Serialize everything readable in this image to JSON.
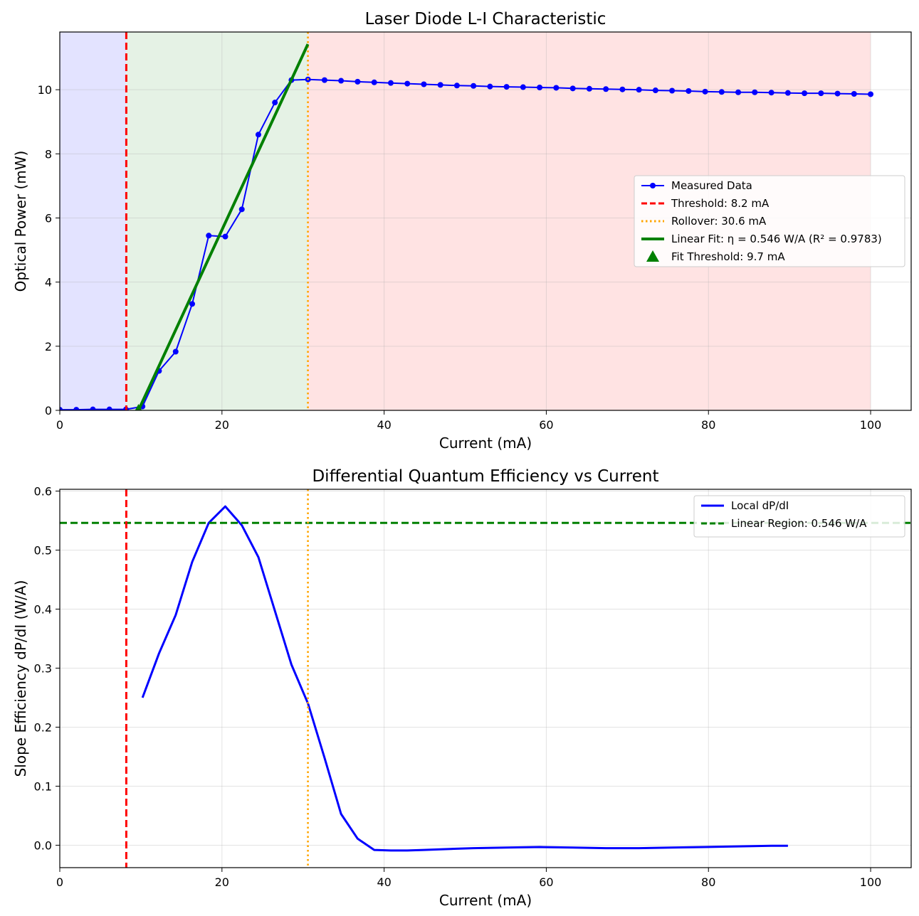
{
  "chart_data": [
    {
      "type": "line",
      "title": "Laser Diode L-I Characteristic",
      "xlabel": "Current (mA)",
      "ylabel": "Optical Power (mW)",
      "xlim": [
        0,
        105
      ],
      "ylim": [
        0,
        11.8
      ],
      "xticks": [
        "0",
        "20",
        "40",
        "60",
        "80",
        "100"
      ],
      "yticks": [
        "0",
        "2",
        "4",
        "6",
        "8",
        "10"
      ],
      "grid": true,
      "legend_position": "center-right",
      "regions": [
        {
          "x0": 0,
          "x1": 8.2,
          "color": "#e3e3ff"
        },
        {
          "x0": 8.2,
          "x1": 30.6,
          "color": "#e5f2e5"
        },
        {
          "x0": 30.6,
          "x1": 100,
          "color": "#ffe3e3"
        }
      ],
      "series": [
        {
          "name": "Measured Data",
          "color": "#0000ff",
          "marker": "circle",
          "x": [
            0,
            2.04,
            4.08,
            6.12,
            8.16,
            10.2,
            12.24,
            14.29,
            16.33,
            18.37,
            20.41,
            22.45,
            24.49,
            26.53,
            28.57,
            30.61,
            32.65,
            34.69,
            36.73,
            38.78,
            40.82,
            42.86,
            44.9,
            46.94,
            48.98,
            51.02,
            53.06,
            55.1,
            57.14,
            59.18,
            61.22,
            63.27,
            65.31,
            67.35,
            69.39,
            71.43,
            73.47,
            75.51,
            77.55,
            79.59,
            81.63,
            83.67,
            85.71,
            87.76,
            89.8,
            91.84,
            93.88,
            95.92,
            97.96,
            100
          ],
          "y": [
            0.02,
            0.02,
            0.03,
            0.03,
            0.03,
            0.12,
            1.23,
            1.83,
            3.32,
            5.45,
            5.42,
            6.27,
            8.6,
            9.6,
            10.3,
            10.32,
            10.3,
            10.28,
            10.25,
            10.23,
            10.21,
            10.19,
            10.17,
            10.15,
            10.13,
            10.12,
            10.1,
            10.09,
            10.08,
            10.07,
            10.06,
            10.04,
            10.03,
            10.02,
            10.01,
            10.0,
            9.98,
            9.97,
            9.96,
            9.94,
            9.93,
            9.92,
            9.92,
            9.91,
            9.9,
            9.89,
            9.89,
            9.88,
            9.87,
            9.86
          ]
        },
        {
          "name": "Threshold: 8.2 mA",
          "style": "vline-dashed",
          "color": "#ff0000",
          "x": 8.2
        },
        {
          "name": "Rollover: 30.6 mA",
          "style": "vline-dotted",
          "color": "#ffa500",
          "x": 30.6
        },
        {
          "name": "Linear Fit: η = 0.546 W/A (R² = 0.9783)",
          "style": "line",
          "color": "#008000",
          "x": [
            9.7,
            30.6
          ],
          "y": [
            0,
            11.42
          ]
        },
        {
          "name": "Fit Threshold: 9.7 mA",
          "style": "marker-triangle",
          "color": "#008000",
          "x": [
            9.7
          ],
          "y": [
            0
          ]
        }
      ]
    },
    {
      "type": "line",
      "title": "Differential Quantum Efficiency vs Current",
      "xlabel": "Current (mA)",
      "ylabel": "Slope Efficiency dP/dI (W/A)",
      "xlim": [
        0,
        105
      ],
      "ylim": [
        -0.038,
        0.603
      ],
      "xticks": [
        "0",
        "20",
        "40",
        "60",
        "80",
        "100"
      ],
      "yticks": [
        "0.0",
        "0.1",
        "0.2",
        "0.3",
        "0.4",
        "0.5",
        "0.6"
      ],
      "grid": true,
      "legend_position": "upper-right",
      "series": [
        {
          "name": "Local dP/dI",
          "color": "#0000ff",
          "x": [
            10.2,
            12.24,
            14.29,
            16.33,
            18.37,
            20.41,
            22.45,
            24.49,
            26.53,
            28.57,
            30.61,
            32.65,
            34.69,
            36.73,
            38.78,
            40.82,
            42.86,
            44.9,
            46.94,
            48.98,
            51.02,
            55.1,
            59.18,
            63.27,
            67.35,
            71.43,
            75.51,
            79.59,
            83.67,
            87.76,
            89.8
          ],
          "y": [
            0.25,
            0.325,
            0.39,
            0.48,
            0.546,
            0.574,
            0.542,
            0.488,
            0.397,
            0.306,
            0.24,
            0.148,
            0.053,
            0.011,
            -0.008,
            -0.009,
            -0.009,
            -0.008,
            -0.007,
            -0.006,
            -0.005,
            -0.004,
            -0.003,
            -0.004,
            -0.005,
            -0.005,
            -0.004,
            -0.003,
            -0.002,
            -0.001,
            -0.001
          ]
        },
        {
          "name": "Linear Region: 0.546 W/A",
          "style": "hline-dashed",
          "color": "#008000",
          "y": 0.546
        },
        {
          "name": "",
          "style": "vline-dashed",
          "color": "#ff0000",
          "x": 8.2
        },
        {
          "name": "",
          "style": "vline-dotted",
          "color": "#ffa500",
          "x": 30.6
        }
      ]
    }
  ]
}
